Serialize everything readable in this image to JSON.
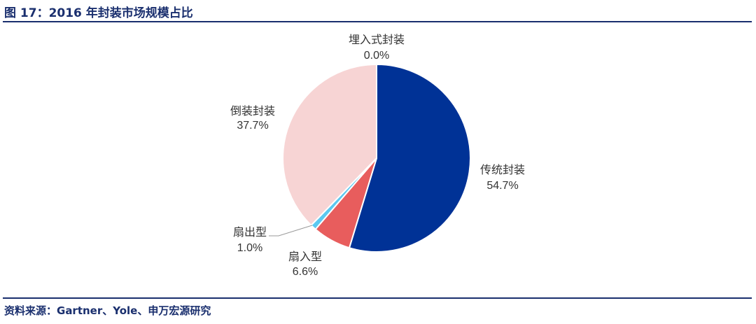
{
  "title": "图 17：2016 年封装市场规模占比",
  "source": "资料来源：Gartner、Yole、申万宏源研究",
  "chart_data": {
    "type": "pie",
    "title": "图 17：2016 年封装市场规模占比",
    "start_angle_deg": 0,
    "direction": "clockwise",
    "slices": [
      {
        "label": "传统封装",
        "value": 54.7,
        "value_text": "54.7%",
        "color": "#003296"
      },
      {
        "label": "扇入型",
        "value": 6.6,
        "value_text": "6.6%",
        "color": "#e85d5d"
      },
      {
        "label": "扇出型",
        "value": 1.0,
        "value_text": "1.0%",
        "color": "#5cc8f0"
      },
      {
        "label": "倒装封装",
        "value": 37.7,
        "value_text": "37.7%",
        "color": "#f7d4d4"
      },
      {
        "label": "埋入式封装",
        "value": 0.0,
        "value_text": "0.0%",
        "color": "#8064a2"
      }
    ]
  }
}
